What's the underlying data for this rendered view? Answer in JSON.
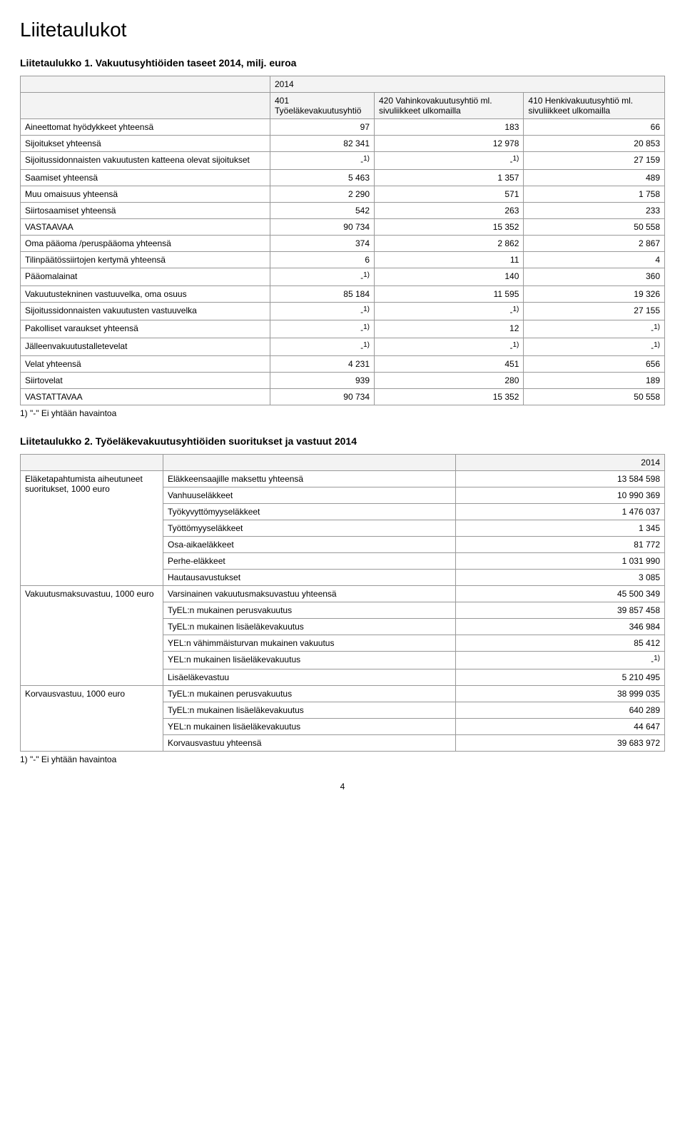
{
  "page": {
    "title": "Liitetaulukot",
    "footnote": "1) \"-\" Ei yhtään havaintoa",
    "page_number": "4"
  },
  "table1": {
    "title": "Liitetaulukko 1. Vakuutusyhtiöiden taseet 2014, milj. euroa",
    "year": "2014",
    "columns": [
      "401 Työeläkevakuutusyhtiö",
      "420 Vahinkovakuutusyhtiö ml. sivuliikkeet ulkomailla",
      "410 Henkivakuutusyhtiö ml. sivuliikkeet ulkomailla"
    ],
    "rows": [
      {
        "label": "Aineettomat hyödykkeet yhteensä",
        "c": [
          "97",
          "183",
          "66"
        ]
      },
      {
        "label": "Sijoitukset yhteensä",
        "c": [
          "82 341",
          "12 978",
          "20 853"
        ]
      },
      {
        "label": "Sijoitussidonnaisten vakuutusten katteena olevat sijoitukset",
        "c": [
          "-1)",
          "-1)",
          "27 159"
        ],
        "sup": [
          true,
          true,
          false
        ]
      },
      {
        "label": "Saamiset yhteensä",
        "c": [
          "5 463",
          "1 357",
          "489"
        ]
      },
      {
        "label": "Muu omaisuus yhteensä",
        "c": [
          "2 290",
          "571",
          "1 758"
        ]
      },
      {
        "label": "Siirtosaamiset yhteensä",
        "c": [
          "542",
          "263",
          "233"
        ]
      },
      {
        "label": "VASTAAVAA",
        "c": [
          "90 734",
          "15 352",
          "50 558"
        ]
      },
      {
        "label": "Oma pääoma /peruspääoma yhteensä",
        "c": [
          "374",
          "2 862",
          "2 867"
        ]
      },
      {
        "label": "Tilinpäätössiirtojen kertymä yhteensä",
        "c": [
          "6",
          "11",
          "4"
        ]
      },
      {
        "label": "Pääomalainat",
        "c": [
          "-1)",
          "140",
          "360"
        ],
        "sup": [
          true,
          false,
          false
        ]
      },
      {
        "label": "Vakuutustekninen vastuuvelka, oma osuus",
        "c": [
          "85 184",
          "11 595",
          "19 326"
        ]
      },
      {
        "label": "Sijoitussidonnaisten vakuutusten vastuuvelka",
        "c": [
          "-1)",
          "-1)",
          "27 155"
        ],
        "sup": [
          true,
          true,
          false
        ]
      },
      {
        "label": "Pakolliset varaukset yhteensä",
        "c": [
          "-1)",
          "12",
          "-1)"
        ],
        "sup": [
          true,
          false,
          true
        ]
      },
      {
        "label": "Jälleenvakuutustalletevelat",
        "c": [
          "-1)",
          "-1)",
          "-1)"
        ],
        "sup": [
          true,
          true,
          true
        ]
      },
      {
        "label": "Velat yhteensä",
        "c": [
          "4 231",
          "451",
          "656"
        ]
      },
      {
        "label": "Siirtovelat",
        "c": [
          "939",
          "280",
          "189"
        ]
      },
      {
        "label": "VASTATTAVAA",
        "c": [
          "90 734",
          "15 352",
          "50 558"
        ]
      }
    ]
  },
  "table2": {
    "title": "Liitetaulukko 2. Työeläkevakuutusyhtiöiden suoritukset ja vastuut 2014",
    "year": "2014",
    "groups": [
      {
        "label": "Eläketapahtumista aiheutuneet suoritukset, 1000 euro",
        "rows": [
          {
            "k": "Eläkkeensaajille maksettu yhteensä",
            "v": "13 584 598"
          },
          {
            "k": "Vanhuuseläkkeet",
            "v": "10 990 369"
          },
          {
            "k": "Työkyvyttömyyseläkkeet",
            "v": "1 476 037"
          },
          {
            "k": "Työttömyyseläkkeet",
            "v": "1 345"
          },
          {
            "k": "Osa-aikaeläkkeet",
            "v": "81 772"
          },
          {
            "k": "Perhe-eläkkeet",
            "v": "1 031 990"
          },
          {
            "k": "Hautausavustukset",
            "v": "3 085"
          }
        ]
      },
      {
        "label": "Vakuutusmaksuvastuu, 1000 euro",
        "rows": [
          {
            "k": "Varsinainen vakuutusmaksuvastuu yhteensä",
            "v": "45 500 349"
          },
          {
            "k": "TyEL:n mukainen perusvakuutus",
            "v": "39 857 458"
          },
          {
            "k": "TyEL:n mukainen lisäeläkevakuutus",
            "v": "346 984"
          },
          {
            "k": "YEL:n vähimmäisturvan mukainen vakuutus",
            "v": "85 412"
          },
          {
            "k": "YEL:n mukainen lisäeläkevakuutus",
            "v": "-1)",
            "sup": true
          },
          {
            "k": "Lisäeläkevastuu",
            "v": "5 210 495"
          }
        ]
      },
      {
        "label": "Korvausvastuu, 1000 euro",
        "rows": [
          {
            "k": "TyEL:n mukainen perusvakuutus",
            "v": "38 999 035"
          },
          {
            "k": "TyEL:n mukainen lisäeläkevakuutus",
            "v": "640 289"
          },
          {
            "k": "YEL:n mukainen lisäeläkevakuutus",
            "v": "44 647"
          },
          {
            "k": "Korvausvastuu yhteensä",
            "v": "39 683 972"
          }
        ]
      }
    ]
  }
}
